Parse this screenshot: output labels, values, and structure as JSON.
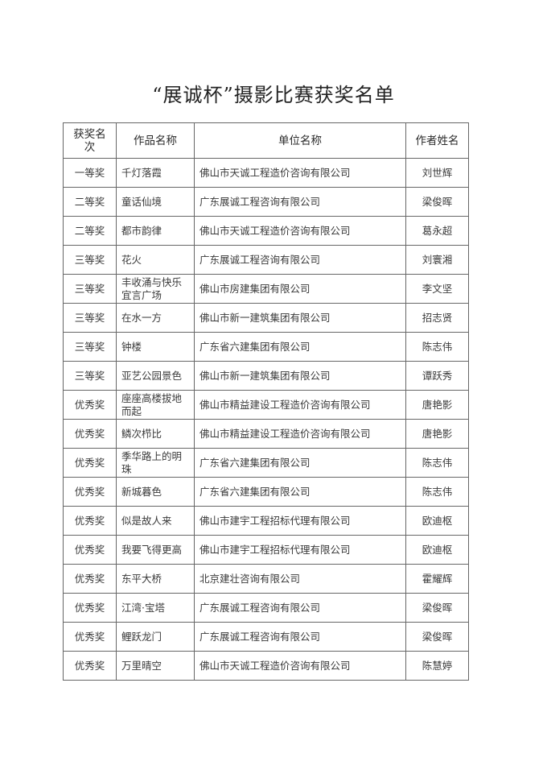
{
  "title": "“展诚杯”摄影比赛获奖名单",
  "table": {
    "headers": [
      "获奖名次",
      "作品名称",
      "单位名称",
      "作者姓名"
    ],
    "rows": [
      [
        "一等奖",
        "千灯落霞",
        "佛山市天诚工程造价咨询有限公司",
        "刘世辉"
      ],
      [
        "二等奖",
        "童话仙境",
        "广东展诚工程咨询有限公司",
        "梁俊晖"
      ],
      [
        "二等奖",
        "都市韵律",
        "佛山市天诚工程造价咨询有限公司",
        "葛永超"
      ],
      [
        "三等奖",
        "花火",
        "广东展诚工程咨询有限公司",
        "刘寰湘"
      ],
      [
        "三等奖",
        "丰收涌与快乐宜言广场",
        "佛山市房建集团有限公司",
        "李文坚"
      ],
      [
        "三等奖",
        "在水一方",
        "佛山市新一建筑集团有限公司",
        "招志贤"
      ],
      [
        "三等奖",
        "钟楼",
        "广东省六建集团有限公司",
        "陈志伟"
      ],
      [
        "三等奖",
        "亚艺公园景色",
        "佛山市新一建筑集团有限公司",
        "谭跃秀"
      ],
      [
        "优秀奖",
        "座座高楼拔地而起",
        "佛山市精益建设工程造价咨询有限公司",
        "唐艳影"
      ],
      [
        "优秀奖",
        "鳞次栉比",
        "佛山市精益建设工程造价咨询有限公司",
        "唐艳影"
      ],
      [
        "优秀奖",
        "季华路上的明珠",
        "广东省六建集团有限公司",
        "陈志伟"
      ],
      [
        "优秀奖",
        "新城暮色",
        "广东省六建集团有限公司",
        "陈志伟"
      ],
      [
        "优秀奖",
        "似是故人来",
        "佛山市建宇工程招标代理有限公司",
        "欧迪枢"
      ],
      [
        "优秀奖",
        "我要飞得更高",
        "佛山市建宇工程招标代理有限公司",
        "欧迪枢"
      ],
      [
        "优秀奖",
        "东平大桥",
        "北京建壮咨询有限公司",
        "霍耀辉"
      ],
      [
        "优秀奖",
        "江湾·宝塔",
        "广东展诚工程咨询有限公司",
        "梁俊晖"
      ],
      [
        "优秀奖",
        "鲤跃龙门",
        "广东展诚工程咨询有限公司",
        "梁俊晖"
      ],
      [
        "优秀奖",
        "万里晴空",
        "佛山市天诚工程造价咨询有限公司",
        "陈慧婷"
      ]
    ]
  }
}
